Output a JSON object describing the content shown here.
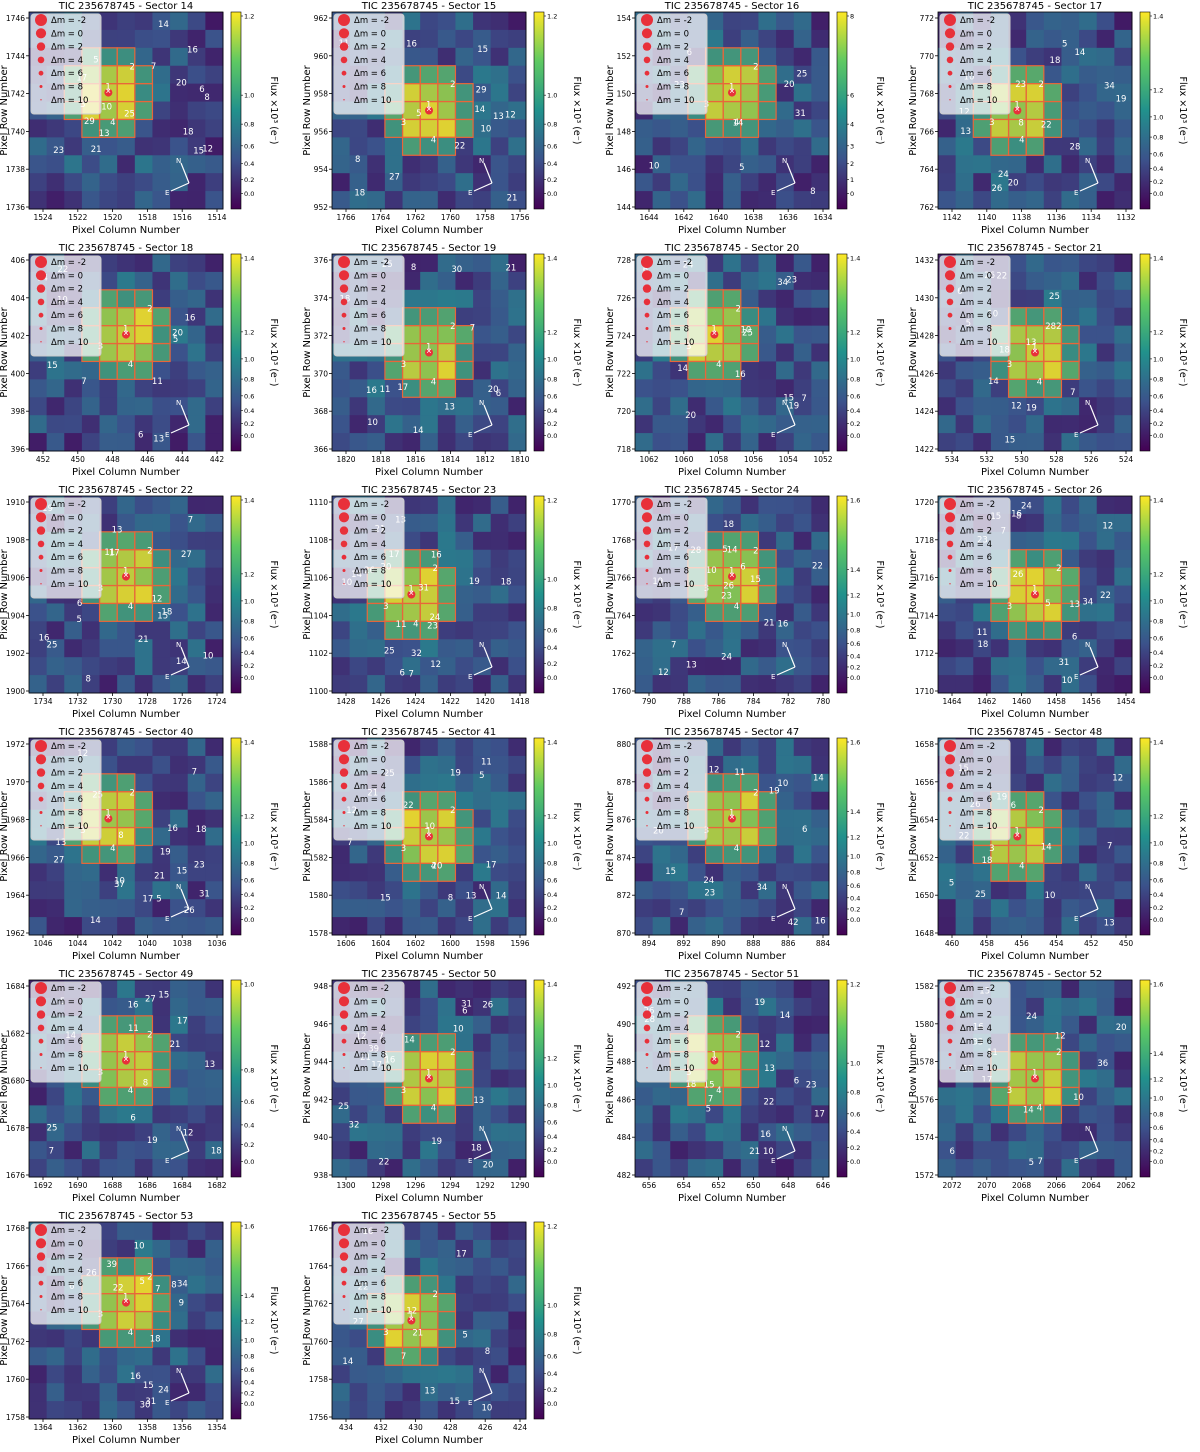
{
  "figure": {
    "colorbar_label": "Flux ×10³ (e⁻)",
    "xlabel": "Pixel Column Number",
    "ylabel": "Pixel Row Number",
    "legend": [
      "Δm = -2",
      "Δm = 0",
      "Δm = 2",
      "Δm = 4",
      "Δm = 6",
      "Δm = 8",
      "Δm = 10"
    ],
    "compass": [
      "N",
      "E"
    ],
    "colormap": [
      "#440154",
      "#3b528b",
      "#21918c",
      "#5ec962",
      "#fde725"
    ],
    "aperture_color": "#e8663a",
    "star_color": "#e8303a"
  },
  "chart_data": [
    {
      "type": "heatmap",
      "title": "TIC 235678745 - Sector 14",
      "xticks": [
        "1524",
        "1522",
        "1520",
        "1518",
        "1516",
        "1514"
      ],
      "yticks": [
        "1746",
        "1744",
        "1742",
        "1740",
        "1738",
        "1736"
      ],
      "cbar_ticks": [
        "1.2",
        "1.0",
        "0.8",
        "0.6",
        "0.4",
        "0.2",
        "0.0"
      ],
      "source_labels": [
        "1",
        "2",
        "3",
        "4",
        "5",
        "6",
        "7",
        "8",
        "10",
        "12",
        "13",
        "14",
        "15",
        "16",
        "17",
        "18",
        "20",
        "21",
        "23",
        "25",
        "29"
      ]
    },
    {
      "type": "heatmap",
      "title": "TIC 235678745 - Sector 15",
      "xticks": [
        "1766",
        "1764",
        "1762",
        "1760",
        "1758",
        "1756"
      ],
      "yticks": [
        "962",
        "960",
        "958",
        "956",
        "954",
        "952"
      ],
      "cbar_ticks": [
        "1.2",
        "1.0",
        "0.8",
        "0.6",
        "0.4",
        "0.2",
        "0.0"
      ],
      "source_labels": [
        "1",
        "2",
        "3",
        "4",
        "5",
        "8",
        "10",
        "11",
        "12",
        "13",
        "14",
        "15",
        "16",
        "18",
        "21",
        "22",
        "27",
        "29"
      ]
    },
    {
      "type": "heatmap",
      "title": "TIC 235678745 - Sector 16",
      "xticks": [
        "1644",
        "1642",
        "1640",
        "1638",
        "1636",
        "1634"
      ],
      "yticks": [
        "154",
        "152",
        "150",
        "148",
        "146",
        "144"
      ],
      "cbar_ticks": [
        "8",
        "6",
        "4",
        "3",
        "2",
        "1",
        "0"
      ],
      "source_labels": [
        "1",
        "2",
        "3",
        "4",
        "5",
        "6",
        "8",
        "10",
        "14",
        "20",
        "23",
        "25",
        "31"
      ]
    },
    {
      "type": "heatmap",
      "title": "TIC 235678745 - Sector 17",
      "xticks": [
        "1142",
        "1140",
        "1138",
        "1136",
        "1134",
        "1132"
      ],
      "yticks": [
        "772",
        "770",
        "768",
        "766",
        "764",
        "762"
      ],
      "cbar_ticks": [
        "1.4",
        "1.2",
        "1.0",
        "0.8",
        "0.6",
        "0.4",
        "0.2",
        "0.0"
      ],
      "source_labels": [
        "1",
        "2",
        "3",
        "4",
        "5",
        "8",
        "10",
        "12",
        "13",
        "14",
        "18",
        "19",
        "20",
        "22",
        "23",
        "24",
        "26",
        "28",
        "34"
      ]
    },
    {
      "type": "heatmap",
      "title": "TIC 235678745 - Sector 18",
      "xticks": [
        "452",
        "450",
        "448",
        "446",
        "444",
        "442"
      ],
      "yticks": [
        "406",
        "404",
        "402",
        "400",
        "398",
        "396"
      ],
      "cbar_ticks": [
        "1.4",
        "1.2",
        "1.0",
        "0.8",
        "0.6",
        "0.4",
        "0.2",
        "0.0"
      ],
      "source_labels": [
        "1",
        "2",
        "3",
        "4",
        "5",
        "6",
        "7",
        "10",
        "11",
        "13",
        "14",
        "15",
        "16",
        "20",
        "22"
      ]
    },
    {
      "type": "heatmap",
      "title": "TIC 235678745 - Sector 19",
      "xticks": [
        "1820",
        "1818",
        "1816",
        "1814",
        "1812",
        "1810"
      ],
      "yticks": [
        "376",
        "374",
        "372",
        "370",
        "368",
        "366"
      ],
      "cbar_ticks": [
        "1.4",
        "1.2",
        "1.0",
        "0.8",
        "0.6",
        "0.4",
        "0.2",
        "0.0"
      ],
      "source_labels": [
        "1",
        "2",
        "3",
        "4",
        "6",
        "7",
        "8",
        "10",
        "11",
        "13",
        "14",
        "16",
        "17",
        "18",
        "20",
        "21",
        "25",
        "30"
      ]
    },
    {
      "type": "heatmap",
      "title": "TIC 235678745 - Sector 20",
      "xticks": [
        "1062",
        "1060",
        "1058",
        "1056",
        "1054",
        "1052"
      ],
      "yticks": [
        "728",
        "726",
        "724",
        "722",
        "720",
        "718"
      ],
      "cbar_ticks": [
        "1.4",
        "1.2",
        "1.0",
        "0.8",
        "0.6",
        "0.4",
        "0.2",
        "0.0"
      ],
      "source_labels": [
        "1",
        "2",
        "3",
        "4",
        "6",
        "7",
        "10",
        "14",
        "15",
        "16",
        "19",
        "20",
        "23",
        "24",
        "25",
        "34"
      ]
    },
    {
      "type": "heatmap",
      "title": "TIC 235678745 - Sector 21",
      "xticks": [
        "534",
        "532",
        "530",
        "528",
        "526",
        "524"
      ],
      "yticks": [
        "1432",
        "1430",
        "1428",
        "1426",
        "1424",
        "1422"
      ],
      "cbar_ticks": [
        "1.4",
        "1.2",
        "1.0",
        "0.8",
        "0.6",
        "0.4",
        "0.2",
        "0.0"
      ],
      "source_labels": [
        "1",
        "2",
        "3",
        "4",
        "5",
        "6",
        "7",
        "10",
        "12",
        "13",
        "14",
        "15",
        "18",
        "19",
        "22",
        "25",
        "26",
        "28"
      ]
    },
    {
      "type": "heatmap",
      "title": "TIC 235678745 - Sector 22",
      "xticks": [
        "1734",
        "1732",
        "1730",
        "1728",
        "1726",
        "1724"
      ],
      "yticks": [
        "1910",
        "1908",
        "1906",
        "1904",
        "1902",
        "1900"
      ],
      "cbar_ticks": [
        "1.4",
        "1.2",
        "1.0",
        "0.8",
        "0.6",
        "0.4",
        "0.2",
        "0.0"
      ],
      "source_labels": [
        "1",
        "2",
        "3",
        "4",
        "5",
        "6",
        "7",
        "8",
        "10",
        "11",
        "12",
        "13",
        "14",
        "15",
        "16",
        "17",
        "18",
        "19",
        "21",
        "25",
        "27"
      ]
    },
    {
      "type": "heatmap",
      "title": "TIC 235678745 - Sector 23",
      "xticks": [
        "1428",
        "1426",
        "1424",
        "1422",
        "1420",
        "1418"
      ],
      "yticks": [
        "1110",
        "1108",
        "1106",
        "1104",
        "1102",
        "1100"
      ],
      "cbar_ticks": [
        "1.2",
        "1.0",
        "0.8",
        "0.6",
        "0.4",
        "0.2",
        "0.0"
      ],
      "source_labels": [
        "1",
        "2",
        "3",
        "4",
        "6",
        "7",
        "10",
        "11",
        "12",
        "13",
        "14",
        "16",
        "17",
        "18",
        "19",
        "20",
        "21",
        "23",
        "24",
        "25",
        "26",
        "31",
        "32"
      ]
    },
    {
      "type": "heatmap",
      "title": "TIC 235678745 - Sector 24",
      "xticks": [
        "790",
        "788",
        "786",
        "784",
        "782",
        "780"
      ],
      "yticks": [
        "1770",
        "1768",
        "1766",
        "1764",
        "1762",
        "1760"
      ],
      "cbar_ticks": [
        "1.6",
        "1.4",
        "1.2",
        "1.0",
        "0.8",
        "0.6",
        "0.4",
        "0.2",
        "0.0"
      ],
      "source_labels": [
        "1",
        "2",
        "3",
        "4",
        "5",
        "6",
        "7",
        "10",
        "12",
        "13",
        "14",
        "15",
        "16",
        "17",
        "18",
        "19",
        "21",
        "22",
        "23",
        "24",
        "26",
        "28"
      ]
    },
    {
      "type": "heatmap",
      "title": "TIC 235678745 - Sector 26",
      "xticks": [
        "1464",
        "1462",
        "1460",
        "1458",
        "1456",
        "1454"
      ],
      "yticks": [
        "1720",
        "1718",
        "1716",
        "1714",
        "1712",
        "1710"
      ],
      "cbar_ticks": [
        "1.4",
        "1.2",
        "1.0",
        "0.8",
        "0.6",
        "0.4",
        "0.2",
        "0.0"
      ],
      "source_labels": [
        "1",
        "2",
        "3",
        "5",
        "6",
        "7",
        "8",
        "10",
        "11",
        "12",
        "13",
        "15",
        "16",
        "18",
        "22",
        "23",
        "24",
        "26",
        "31",
        "34"
      ]
    },
    {
      "type": "heatmap",
      "title": "TIC 235678745 - Sector 40",
      "xticks": [
        "1046",
        "1044",
        "1042",
        "1040",
        "1038",
        "1036"
      ],
      "yticks": [
        "1972",
        "1970",
        "1968",
        "1966",
        "1964",
        "1962"
      ],
      "cbar_ticks": [
        "1.4",
        "1.2",
        "1.0",
        "0.8",
        "0.6",
        "0.4",
        "0.2",
        "0.0"
      ],
      "source_labels": [
        "1",
        "2",
        "3",
        "4",
        "5",
        "7",
        "8",
        "10",
        "12",
        "13",
        "14",
        "15",
        "16",
        "17",
        "18",
        "19",
        "21",
        "23",
        "25",
        "26",
        "27",
        "31",
        "37"
      ]
    },
    {
      "type": "heatmap",
      "title": "TIC 235678745 - Sector 41",
      "xticks": [
        "1606",
        "1604",
        "1602",
        "1600",
        "1598",
        "1596"
      ],
      "yticks": [
        "1588",
        "1586",
        "1584",
        "1582",
        "1580",
        "1578"
      ],
      "cbar_ticks": [
        "1.4",
        "1.2",
        "1.0",
        "0.8",
        "0.6",
        "0.4",
        "0.2",
        "0.0"
      ],
      "source_labels": [
        "1",
        "2",
        "3",
        "4",
        "5",
        "7",
        "8",
        "10",
        "11",
        "12",
        "13",
        "14",
        "15",
        "17",
        "19",
        "20",
        "21",
        "22",
        "25"
      ]
    },
    {
      "type": "heatmap",
      "title": "TIC 235678745 - Sector 47",
      "xticks": [
        "894",
        "892",
        "890",
        "888",
        "886",
        "884"
      ],
      "yticks": [
        "880",
        "878",
        "876",
        "874",
        "872",
        "870"
      ],
      "cbar_ticks": [
        "1.6",
        "1.4",
        "1.2",
        "1.0",
        "0.8",
        "0.6",
        "0.4",
        "0.2",
        "0.0"
      ],
      "source_labels": [
        "1",
        "2",
        "3",
        "4",
        "6",
        "7",
        "10",
        "11",
        "12",
        "14",
        "15",
        "16",
        "19",
        "20",
        "23",
        "24",
        "34",
        "42"
      ]
    },
    {
      "type": "heatmap",
      "title": "TIC 235678745 - Sector 48",
      "xticks": [
        "460",
        "458",
        "456",
        "454",
        "452",
        "450"
      ],
      "yticks": [
        "1658",
        "1656",
        "1654",
        "1652",
        "1650",
        "1648"
      ],
      "cbar_ticks": [
        "1.4",
        "1.2",
        "1.0",
        "0.8",
        "0.6",
        "0.4",
        "0.2",
        "0.0"
      ],
      "source_labels": [
        "1",
        "2",
        "3",
        "4",
        "5",
        "6",
        "7",
        "10",
        "12",
        "13",
        "14",
        "15",
        "18",
        "19",
        "22",
        "25",
        "26"
      ]
    },
    {
      "type": "heatmap",
      "title": "TIC 235678745 - Sector 49",
      "xticks": [
        "1692",
        "1690",
        "1688",
        "1686",
        "1684",
        "1682"
      ],
      "yticks": [
        "1684",
        "1682",
        "1680",
        "1678",
        "1676"
      ],
      "cbar_ticks": [
        "1.0",
        "0.8",
        "0.6",
        "0.4",
        "0.2",
        "0.0"
      ],
      "source_labels": [
        "1",
        "2",
        "3",
        "4",
        "5",
        "6",
        "7",
        "8",
        "11",
        "12",
        "13",
        "14",
        "15",
        "16",
        "17",
        "18",
        "19",
        "21",
        "25",
        "27"
      ]
    },
    {
      "type": "heatmap",
      "title": "TIC 235678745 - Sector 50",
      "xticks": [
        "1300",
        "1298",
        "1296",
        "1294",
        "1292",
        "1290"
      ],
      "yticks": [
        "948",
        "946",
        "944",
        "942",
        "940",
        "938"
      ],
      "cbar_ticks": [
        "1.4",
        "1.2",
        "1.0",
        "0.8",
        "0.6",
        "0.4",
        "0.2",
        "0.0"
      ],
      "source_labels": [
        "1",
        "2",
        "3",
        "4",
        "5",
        "6",
        "7",
        "10",
        "12",
        "13",
        "14",
        "16",
        "17",
        "18",
        "19",
        "20",
        "21",
        "22",
        "25",
        "26",
        "31",
        "32",
        "39"
      ]
    },
    {
      "type": "heatmap",
      "title": "TIC 235678745 - Sector 51",
      "xticks": [
        "656",
        "654",
        "652",
        "650",
        "648",
        "646"
      ],
      "yticks": [
        "492",
        "490",
        "488",
        "486",
        "484",
        "482"
      ],
      "cbar_ticks": [
        "1.2",
        "1.0",
        "0.8",
        "0.6",
        "0.4",
        "0.2",
        "0.0"
      ],
      "source_labels": [
        "1",
        "2",
        "3",
        "4",
        "5",
        "6",
        "7",
        "10",
        "12",
        "13",
        "14",
        "15",
        "16",
        "17",
        "18",
        "19",
        "21",
        "22",
        "23",
        "26",
        "28"
      ]
    },
    {
      "type": "heatmap",
      "title": "TIC 235678745 - Sector 52",
      "xticks": [
        "2072",
        "2070",
        "2068",
        "2066",
        "2064",
        "2062"
      ],
      "yticks": [
        "1582",
        "1580",
        "1578",
        "1576",
        "1574",
        "1572"
      ],
      "cbar_ticks": [
        "1.6",
        "1.4",
        "1.2",
        "1.0",
        "0.8",
        "0.6",
        "0.4",
        "0.2",
        "0.0"
      ],
      "source_labels": [
        "1",
        "2",
        "3",
        "4",
        "5",
        "6",
        "7",
        "10",
        "11",
        "12",
        "13",
        "14",
        "16",
        "17",
        "20",
        "24",
        "27",
        "33",
        "36"
      ]
    },
    {
      "type": "heatmap",
      "title": "TIC 235678745 - Sector 53",
      "xticks": [
        "1364",
        "1362",
        "1360",
        "1358",
        "1356",
        "1354"
      ],
      "yticks": [
        "1768",
        "1766",
        "1764",
        "1762",
        "1760",
        "1758"
      ],
      "cbar_ticks": [
        "1.6",
        "1.4",
        "1.2",
        "1.0",
        "0.8",
        "0.6",
        "0.4",
        "0.2",
        "0.0"
      ],
      "source_labels": [
        "1",
        "2",
        "3",
        "4",
        "5",
        "6",
        "7",
        "8",
        "9",
        "10",
        "15",
        "16",
        "18",
        "22",
        "24",
        "26",
        "30",
        "31",
        "34",
        "39"
      ]
    },
    {
      "type": "heatmap",
      "title": "TIC 235678745 - Sector 55",
      "xticks": [
        "434",
        "432",
        "430",
        "428",
        "426",
        "424"
      ],
      "yticks": [
        "1766",
        "1764",
        "1762",
        "1760",
        "1758",
        "1756"
      ],
      "cbar_ticks": [
        "1.2",
        "1.0",
        "0.8",
        "0.6",
        "0.4",
        "0.2",
        "0.0"
      ],
      "source_labels": [
        "1",
        "2",
        "3",
        "5",
        "7",
        "8",
        "10",
        "12",
        "13",
        "14",
        "15",
        "16",
        "17",
        "21",
        "22",
        "27"
      ]
    }
  ]
}
